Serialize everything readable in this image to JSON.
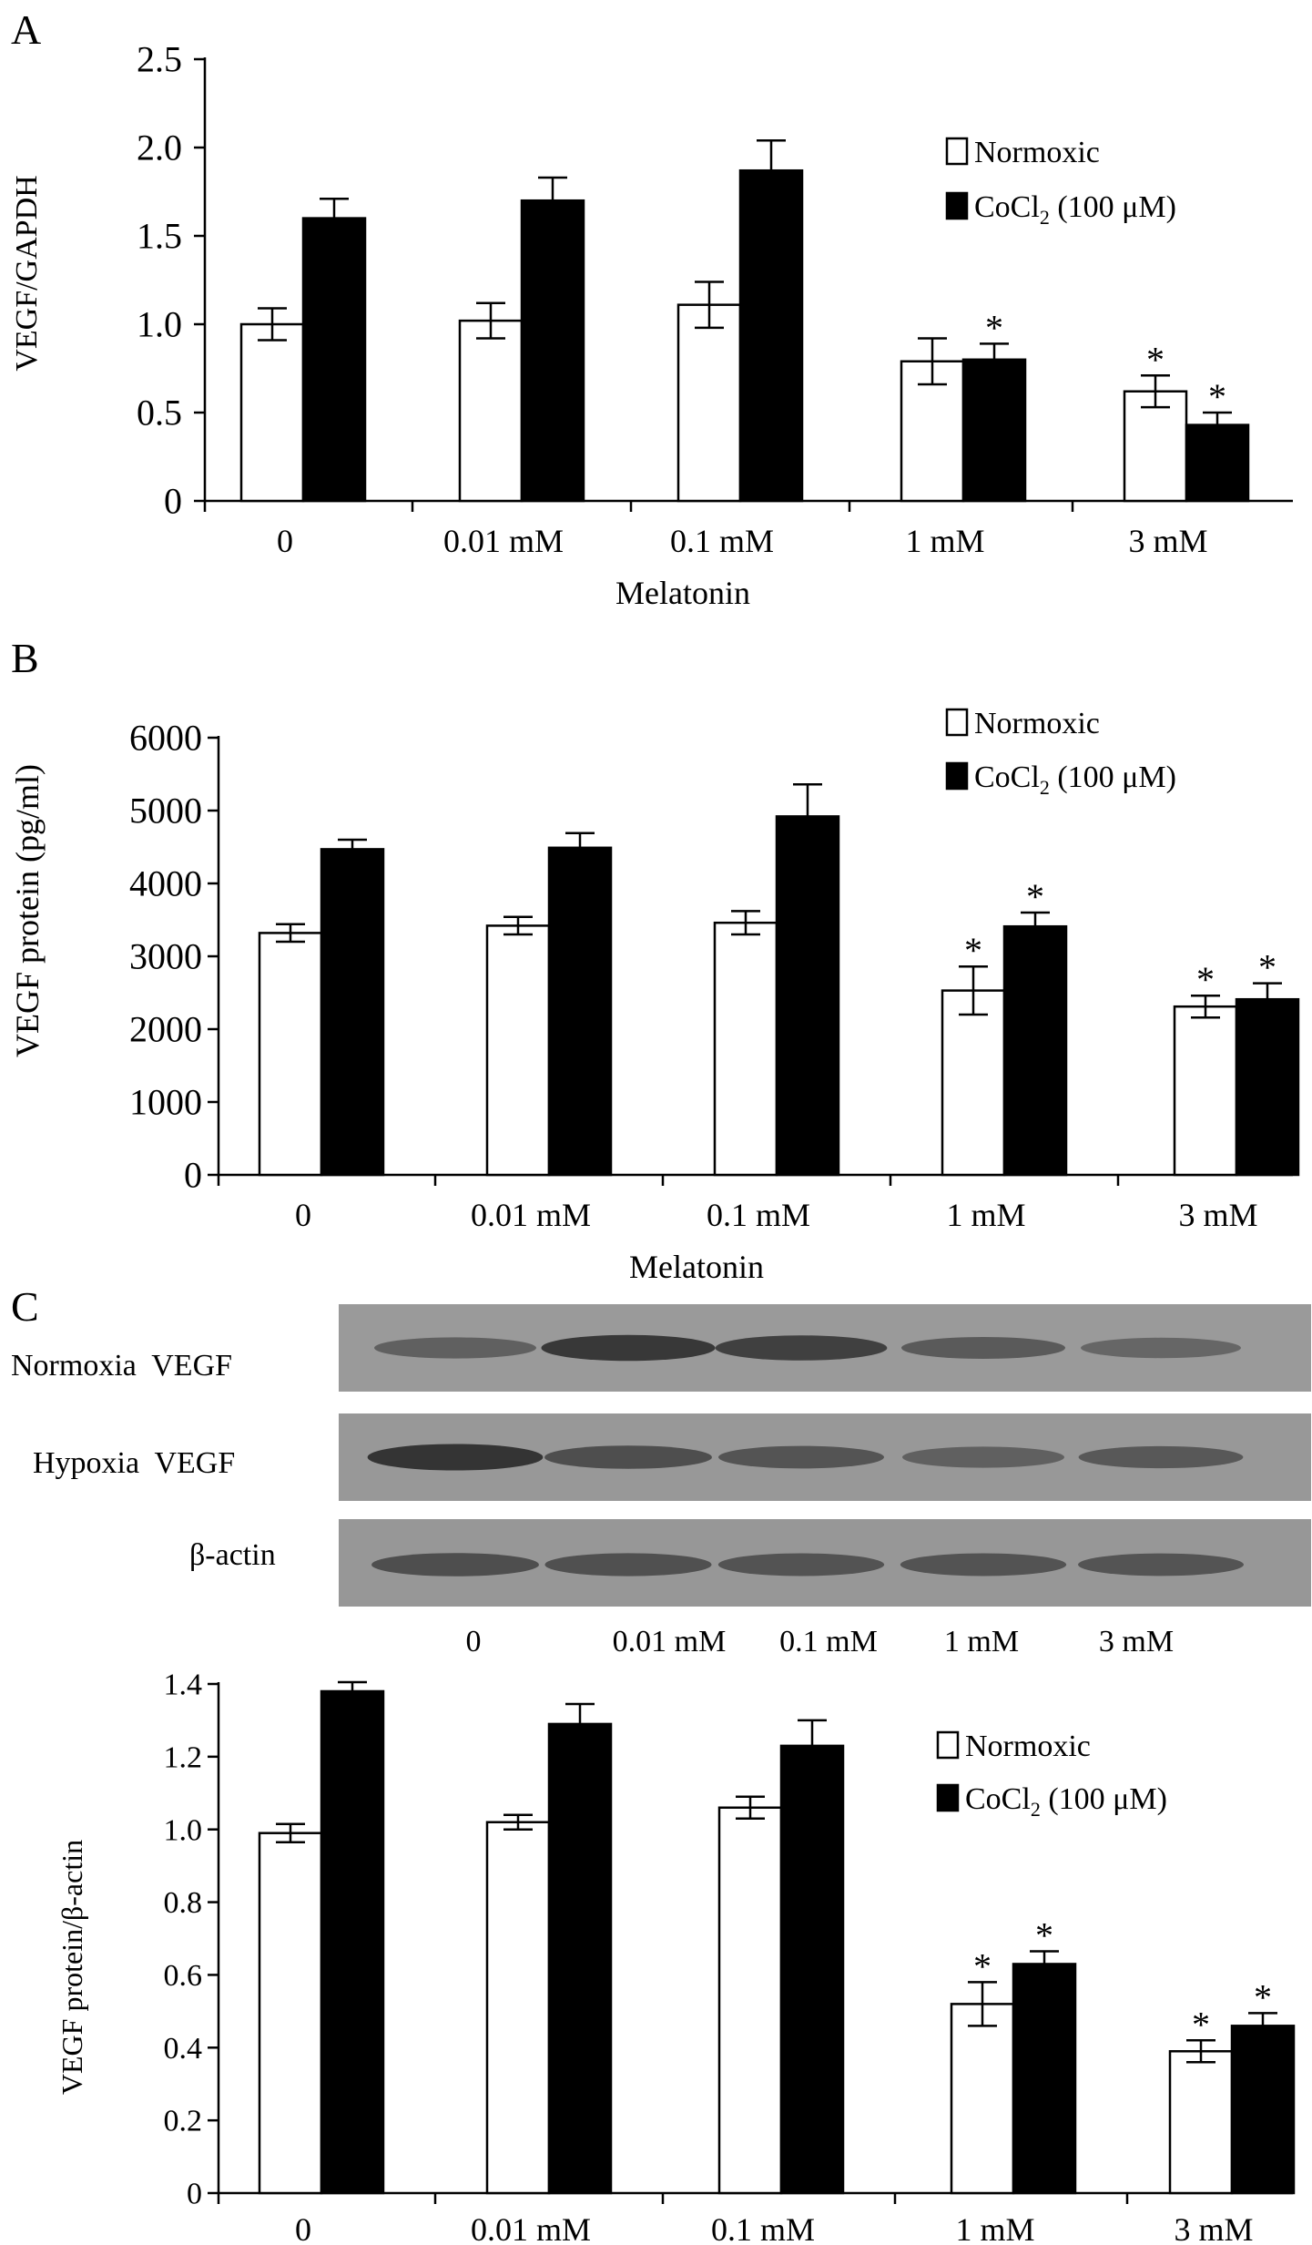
{
  "legend": {
    "normoxic_label": "Normoxic",
    "cocl2_label": "CoCl",
    "cocl2_subscript": "2",
    "cocl2_suffix": " (100 μM)"
  },
  "chart_data": [
    {
      "panel_letter": "A",
      "type": "bar",
      "ylabel": "VEGF/GAPDH",
      "xlabel": "Melatonin",
      "ylim": [
        0,
        2.5
      ],
      "y_ticks": [
        "0",
        "0.5",
        "1.0",
        "1.5",
        "2.0",
        "2.5"
      ],
      "y_tick_values": [
        0,
        0.5,
        1.0,
        1.5,
        2.0,
        2.5
      ],
      "categories": [
        "0",
        "0.01 mM",
        "0.1 mM",
        "1 mM",
        "3 mM"
      ],
      "legend_position": "top-right",
      "series": [
        {
          "name": "Normoxic",
          "fill": "#ffffff",
          "values": [
            1.0,
            1.02,
            1.11,
            0.79,
            0.62
          ],
          "errors": [
            0.09,
            0.1,
            0.13,
            0.13,
            0.09
          ],
          "significant": [
            false,
            false,
            false,
            false,
            true
          ]
        },
        {
          "name": "CoCl2 (100 μM)",
          "fill": "#000000",
          "values": [
            1.6,
            1.7,
            1.87,
            0.8,
            0.43
          ],
          "errors": [
            0.11,
            0.13,
            0.17,
            0.09,
            0.07
          ],
          "significant": [
            false,
            false,
            false,
            true,
            true
          ]
        }
      ]
    },
    {
      "panel_letter": "B",
      "type": "bar",
      "ylabel": "VEGF protein (pg/ml)",
      "xlabel": "Melatonin",
      "ylim": [
        0,
        6000
      ],
      "y_ticks": [
        "0",
        "1000",
        "2000",
        "3000",
        "4000",
        "5000",
        "6000"
      ],
      "y_tick_values": [
        0,
        1000,
        2000,
        3000,
        4000,
        5000,
        6000
      ],
      "categories": [
        "0",
        "0.01 mM",
        "0.1 mM",
        "1 mM",
        "3 mM"
      ],
      "legend_position": "top-right",
      "series": [
        {
          "name": "Normoxic",
          "fill": "#ffffff",
          "values": [
            3320,
            3420,
            3460,
            2530,
            2310
          ],
          "errors": [
            120,
            120,
            160,
            330,
            150
          ],
          "significant": [
            false,
            false,
            false,
            true,
            true
          ]
        },
        {
          "name": "CoCl2 (100 μM)",
          "fill": "#000000",
          "values": [
            4470,
            4490,
            4920,
            3410,
            2410
          ],
          "errors": [
            130,
            200,
            440,
            190,
            220
          ],
          "significant": [
            false,
            false,
            false,
            true,
            true
          ]
        }
      ]
    },
    {
      "panel_letter": "",
      "type": "bar",
      "ylabel": "VEGF protein/β-actin",
      "xlabel": "",
      "ylim": [
        0,
        1.4
      ],
      "y_ticks": [
        "0",
        "0.2",
        "0.4",
        "0.6",
        "0.8",
        "1.0",
        "1.2",
        "1.4"
      ],
      "y_tick_values": [
        0,
        0.2,
        0.4,
        0.6,
        0.8,
        1.0,
        1.2,
        1.4
      ],
      "categories": [
        "0",
        "0.01 mM",
        "0.1 mM",
        "1 mM",
        "3 mM"
      ],
      "legend_position": "top-right",
      "series": [
        {
          "name": "Normoxic",
          "fill": "#ffffff",
          "values": [
            0.99,
            1.02,
            1.06,
            0.52,
            0.39
          ],
          "errors": [
            0.025,
            0.02,
            0.03,
            0.06,
            0.03
          ],
          "significant": [
            false,
            false,
            false,
            true,
            true
          ]
        },
        {
          "name": "CoCl2 (100 μM)",
          "fill": "#000000",
          "values": [
            1.38,
            1.29,
            1.23,
            0.63,
            0.46
          ],
          "errors": [
            0.025,
            0.055,
            0.07,
            0.035,
            0.035
          ],
          "significant": [
            false,
            false,
            false,
            true,
            true
          ]
        }
      ]
    }
  ],
  "blot": {
    "panel_letter": "C",
    "rows": [
      {
        "label": "Normoxia  VEGF",
        "band_intensity": [
          0.45,
          0.78,
          0.72,
          0.5,
          0.4
        ]
      },
      {
        "label": "Hypoxia  VEGF",
        "band_intensity": [
          0.82,
          0.6,
          0.55,
          0.45,
          0.52
        ]
      },
      {
        "label": "β-actin",
        "band_intensity": [
          0.6,
          0.58,
          0.56,
          0.56,
          0.55
        ]
      }
    ],
    "lane_labels": [
      "0",
      "0.01 mM",
      "0.1 mM",
      "1 mM",
      "3 mM"
    ]
  },
  "significance_mark": "*"
}
